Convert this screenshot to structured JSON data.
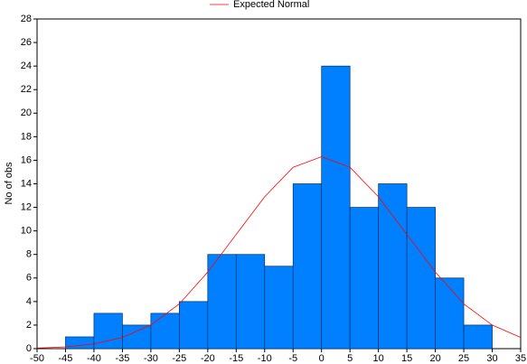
{
  "chart_data": {
    "type": "histogram",
    "ylabel": "No of obs",
    "bins": [
      -45,
      -40,
      -35,
      -30,
      -25,
      -20,
      -15,
      -10,
      -5,
      0,
      5,
      10,
      15,
      20,
      25,
      30
    ],
    "values": [
      1,
      3,
      2,
      3,
      4,
      8,
      8,
      7,
      14,
      24,
      12,
      14,
      12,
      6,
      2
    ],
    "color": "#0080ff",
    "xlim": [
      -50,
      35
    ],
    "ylim": [
      0,
      28
    ],
    "xticks": [
      -50,
      -45,
      -40,
      -35,
      -30,
      -25,
      -20,
      -15,
      -10,
      -5,
      0,
      5,
      10,
      15,
      20,
      25,
      30,
      35
    ],
    "yticks": [
      0,
      2,
      4,
      6,
      8,
      10,
      12,
      14,
      16,
      18,
      20,
      22,
      24,
      26,
      28
    ],
    "lines": [
      {
        "name": "Expected Normal",
        "color": "#ff0000",
        "x": [
          -50,
          -45,
          -40,
          -35,
          -30,
          -25,
          -20,
          -15,
          -10,
          -5,
          0,
          5,
          10,
          15,
          20,
          25,
          30,
          35
        ],
        "values": [
          0.05,
          0.15,
          0.4,
          0.95,
          2.0,
          3.8,
          6.5,
          9.7,
          12.9,
          15.4,
          16.3,
          15.4,
          12.9,
          9.7,
          6.5,
          3.8,
          2.0,
          0.95
        ]
      }
    ]
  }
}
